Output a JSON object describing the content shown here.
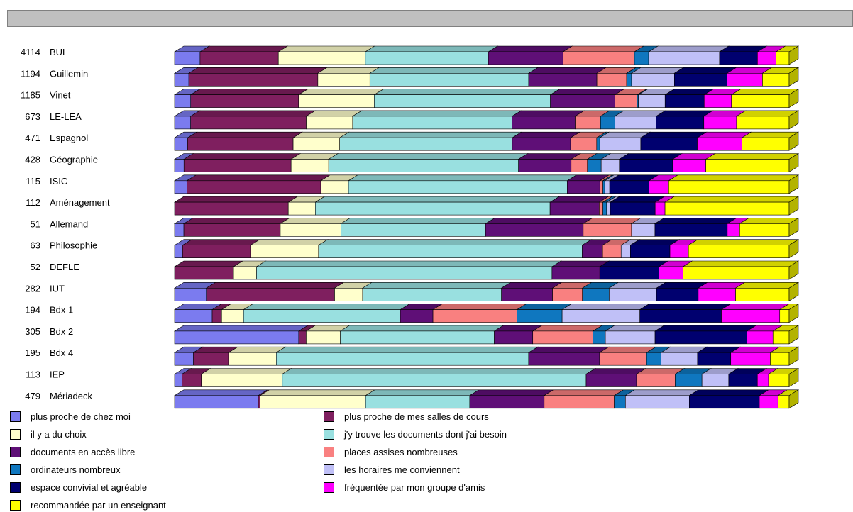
{
  "chart_data": {
    "type": "bar",
    "orientation": "horizontal",
    "stacked": true,
    "normalized": true,
    "three_d": true,
    "legend_position": "bottom",
    "categories": [
      {
        "count": "4114",
        "name": "BUL"
      },
      {
        "count": "1194",
        "name": "Guillemin"
      },
      {
        "count": "1185",
        "name": "Vinet"
      },
      {
        "count": "673",
        "name": "LE-LEA"
      },
      {
        "count": "471",
        "name": "Espagnol"
      },
      {
        "count": "428",
        "name": "Géographie"
      },
      {
        "count": "115",
        "name": "ISIC"
      },
      {
        "count": "112",
        "name": "Aménagement"
      },
      {
        "count": "51",
        "name": "Allemand"
      },
      {
        "count": "63",
        "name": "Philosophie"
      },
      {
        "count": "52",
        "name": "DEFLE"
      },
      {
        "count": "282",
        "name": "IUT"
      },
      {
        "count": "194",
        "name": "Bdx 1"
      },
      {
        "count": "305",
        "name": "Bdx 2"
      },
      {
        "count": "195",
        "name": "Bdx 4"
      },
      {
        "count": "113",
        "name": "IEP"
      },
      {
        "count": "479",
        "name": "Mériadeck"
      }
    ],
    "series": [
      {
        "name": "plus proche de chez moi",
        "color": "#7b7bef",
        "values": [
          4.1,
          2.3,
          2.6,
          2.6,
          2.1,
          1.5,
          2.0,
          0,
          1.5,
          1.3,
          0,
          5.1,
          6.0,
          20.0,
          3.0,
          1.2,
          13.5
        ]
      },
      {
        "name": "plus proche de mes salles de cours",
        "color": "#7f1f5f",
        "values": [
          12.6,
          20.8,
          17.4,
          18.7,
          17.0,
          17.1,
          21.8,
          18.5,
          15.6,
          11.0,
          9.5,
          20.6,
          1.5,
          1.2,
          5.6,
          3.1,
          0.3
        ]
      },
      {
        "name": "il y a du choix",
        "color": "#ffffcc",
        "values": [
          14.0,
          8.4,
          12.2,
          7.5,
          7.5,
          6.0,
          4.5,
          4.4,
          9.8,
          11.0,
          3.7,
          4.5,
          3.5,
          5.5,
          7.6,
          13.0,
          17.0
        ]
      },
      {
        "name": "j'y trouve les documents dont j'ai besoin",
        "color": "#99e0e0",
        "values": [
          19.8,
          25.6,
          28.4,
          25.8,
          27.8,
          30.3,
          35.6,
          38.2,
          23.4,
          42.7,
          47.6,
          22.3,
          25.0,
          24.8,
          40.2,
          48.8,
          16.8
        ]
      },
      {
        "name": "documents en accès libre",
        "color": "#5f0f77",
        "values": [
          12.0,
          11.0,
          10.4,
          10.2,
          9.4,
          8.4,
          5.3,
          8.0,
          15.8,
          3.3,
          7.7,
          8.2,
          5.2,
          6.2,
          11.3,
          8.1,
          12.0
        ]
      },
      {
        "name": "places assises nombreuses",
        "color": "#f98080",
        "values": [
          11.5,
          4.8,
          3.6,
          4.1,
          4.2,
          2.6,
          0.5,
          0.6,
          7.8,
          3.0,
          0,
          4.8,
          13.4,
          9.7,
          7.5,
          6.2,
          11.3
        ]
      },
      {
        "name": "ordinateurs nombreux",
        "color": "#0f77bf",
        "values": [
          2.3,
          0.8,
          0.2,
          2.3,
          0.5,
          2.2,
          0.3,
          0.6,
          0,
          0,
          0,
          4.3,
          7.2,
          2.0,
          2.3,
          4.3,
          1.8
        ]
      },
      {
        "name": "les horaires me conviennent",
        "color": "#c0c0f7",
        "values": [
          11.4,
          6.9,
          4.3,
          6.7,
          6.6,
          2.9,
          0.8,
          0.6,
          3.8,
          1.5,
          0,
          7.6,
          12.4,
          8.0,
          5.8,
          4.3,
          10.3
        ]
      },
      {
        "name": "espace convivial et agréable",
        "color": "#00006f",
        "values": [
          6.1,
          8.5,
          6.3,
          7.7,
          9.1,
          8.5,
          6.4,
          7.3,
          11.7,
          6.4,
          9.5,
          6.7,
          13.0,
          14.8,
          5.3,
          4.6,
          11.3
        ]
      },
      {
        "name": "fréquentée par mon groupe d'amis",
        "color": "#ff00ff",
        "values": [
          3.0,
          5.7,
          4.4,
          5.3,
          7.2,
          5.3,
          3.2,
          1.6,
          2.0,
          3.0,
          3.9,
          6.0,
          9.3,
          4.2,
          6.3,
          1.8,
          3.0
        ]
      },
      {
        "name": "recommandée par un enseignant",
        "color": "#ffff00",
        "values": [
          2.1,
          4.3,
          9.3,
          8.5,
          7.6,
          13.3,
          19.6,
          20.2,
          8.0,
          16.3,
          17.1,
          8.6,
          1.5,
          2.6,
          3.0,
          3.3,
          1.8
        ]
      }
    ]
  }
}
